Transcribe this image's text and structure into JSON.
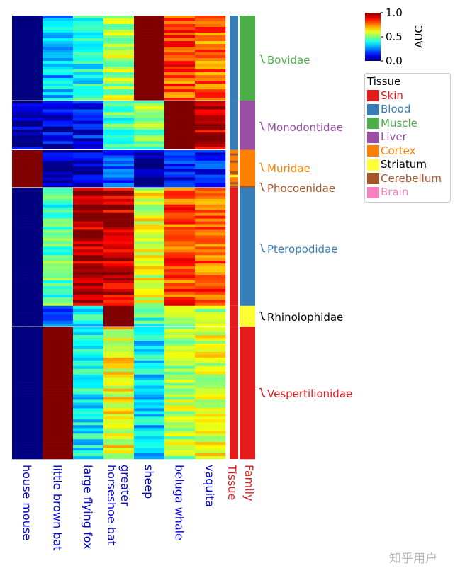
{
  "chart_data": {
    "type": "heatmap",
    "columns": [
      "house mouse",
      "little brown bat",
      "large flying fox",
      "greater horseshoe bat",
      "sheep",
      "beluga whale",
      "vaquita"
    ],
    "annotation_columns": [
      "Tissue",
      "Family"
    ],
    "colorbar": {
      "label": "AUC",
      "min": 0.0,
      "max": 1.0,
      "ticks": [
        "0.0",
        "0.5",
        "1.0"
      ],
      "colormap": "jet"
    },
    "row_groups": [
      {
        "family": "Bovidae",
        "tissue": "Blood",
        "rows": 90,
        "values": [
          0.0,
          0.32,
          0.38,
          0.55,
          1.0,
          0.8,
          0.77
        ]
      },
      {
        "family": "Monodontidae",
        "tissue": "Blood",
        "rows": 52,
        "values": [
          0.05,
          0.1,
          0.12,
          0.45,
          0.5,
          1.0,
          0.95
        ]
      },
      {
        "family": "Muridae",
        "tissue": "Cortex",
        "rows": 38,
        "values": [
          1.0,
          0.05,
          0.1,
          0.18,
          0.05,
          0.15,
          0.15
        ]
      },
      {
        "family": "Phocoenidae",
        "tissue": "Cerebellum",
        "rows": 2,
        "values": [
          1.0,
          0.05,
          0.1,
          0.2,
          0.05,
          0.15,
          0.15
        ]
      },
      {
        "family": "Pteropodidae",
        "tissue": "Skin",
        "rows": 125,
        "values": [
          0.0,
          0.45,
          0.95,
          0.93,
          0.6,
          0.8,
          0.78
        ]
      },
      {
        "family": "Rhinolophidae",
        "tissue": "Skin",
        "rows": 22,
        "values": [
          0.0,
          0.25,
          0.38,
          1.0,
          0.42,
          0.55,
          0.55
        ]
      },
      {
        "family": "Vespertilionidae",
        "tissue": "Skin",
        "rows": 140,
        "values": [
          0.0,
          1.0,
          0.38,
          0.62,
          0.35,
          0.55,
          0.6
        ]
      }
    ],
    "families": [
      {
        "name": "Bovidae",
        "color": "#4daf4a"
      },
      {
        "name": "Monodontidae",
        "color": "#984ea3"
      },
      {
        "name": "Muridae",
        "color": "#ff7f00"
      },
      {
        "name": "Phocoenidae",
        "color": "#a65628"
      },
      {
        "name": "Pteropodidae",
        "color": "#377eb8"
      },
      {
        "name": "Rhinolophidae",
        "color": "#000000"
      },
      {
        "name": "Vespertilionidae",
        "color": "#e41a1c"
      }
    ],
    "family_bar_colors": {
      "Bovidae": "#4daf4a",
      "Monodontidae": "#984ea3",
      "Muridae": "#ff7f00",
      "Phocoenidae": "#a65628",
      "Pteropodidae": "#377eb8",
      "Rhinolophidae": "#ffff33",
      "Vespertilionidae": "#e41a1c"
    },
    "legend": {
      "title": "Tissue",
      "placement": "right",
      "items": [
        {
          "label": "Skin",
          "color": "#e41a1c",
          "text_color": "#e41a1c"
        },
        {
          "label": "Blood",
          "color": "#377eb8",
          "text_color": "#377eb8"
        },
        {
          "label": "Muscle",
          "color": "#4daf4a",
          "text_color": "#4daf4a"
        },
        {
          "label": "Liver",
          "color": "#984ea3",
          "text_color": "#984ea3"
        },
        {
          "label": "Cortex",
          "color": "#ff7f00",
          "text_color": "#ff7f00"
        },
        {
          "label": "Striatum",
          "color": "#ffff33",
          "text_color": "#000000"
        },
        {
          "label": "Cerebellum",
          "color": "#a65628",
          "text_color": "#a65628"
        },
        {
          "label": "Brain",
          "color": "#f781bf",
          "text_color": "#f781bf"
        }
      ]
    },
    "column_label_color": "#0000cd",
    "annotation_label_color": "#e41a1c"
  },
  "watermark": "知乎用户"
}
